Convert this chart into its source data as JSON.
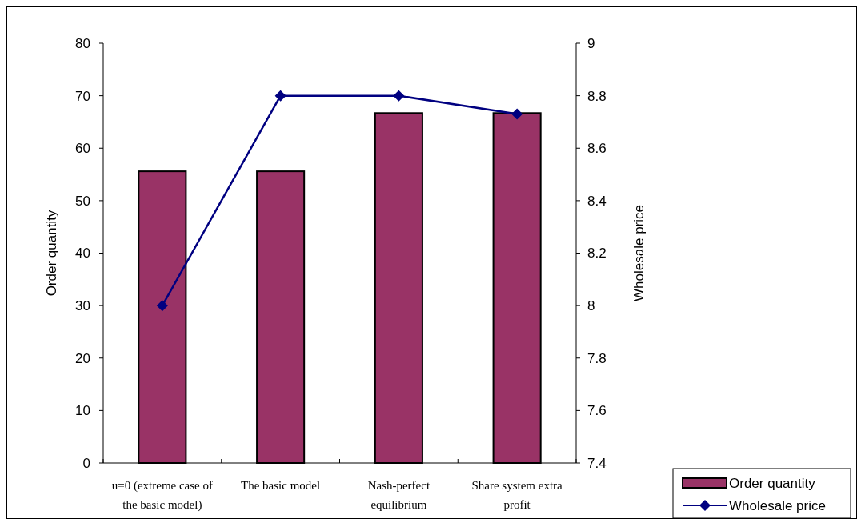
{
  "chart_data": {
    "type": "bar",
    "categories": [
      "u=0 (extreme case of the basic model)",
      "The basic model",
      "Nash-perfect equilibrium",
      "Share system extra profit"
    ],
    "series": [
      {
        "name": "Order quantity",
        "color": "#993366",
        "values": [
          55.6,
          55.6,
          66.7,
          66.7
        ]
      },
      {
        "name": "Wholesale price",
        "type": "line",
        "axis": "y2",
        "color": "#000080",
        "values": [
          8.0,
          8.8,
          8.8,
          8.73
        ]
      }
    ],
    "ylabel": "Order quantity",
    "y2label": "Wholesale price",
    "ylim": [
      0,
      80
    ],
    "yticks": [
      0,
      10,
      20,
      30,
      40,
      50,
      60,
      70,
      80
    ],
    "y2lim": [
      7.4,
      9
    ],
    "y2ticks": [
      {
        "value": 7.4,
        "label": "7.4"
      },
      {
        "value": 7.6,
        "label": "7.6"
      },
      {
        "value": 7.8,
        "label": "7.8"
      },
      {
        "value": 8,
        "label": "8"
      },
      {
        "value": 8.2,
        "label": "8.2"
      },
      {
        "value": 8.4,
        "label": "8.4"
      },
      {
        "value": 8.6,
        "label": "8.6"
      },
      {
        "value": 8.8,
        "label": "8.8"
      },
      {
        "value": 9,
        "label": "9"
      }
    ],
    "marker": "diamond",
    "legend": "bottom right",
    "grid": false
  }
}
